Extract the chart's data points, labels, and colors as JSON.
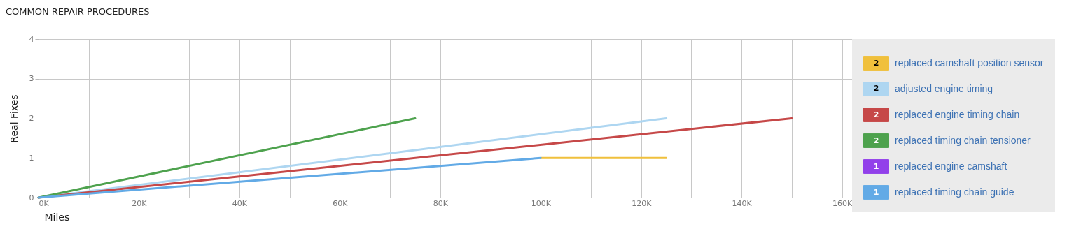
{
  "chart_data": {
    "type": "line",
    "title": "COMMON REPAIR PROCEDURES",
    "xlabel": "Miles",
    "ylabel": "Real Fixes",
    "series": [
      {
        "name": "replaced camshaft position sensor",
        "color": "#f0c03c",
        "x": [
          100000,
          125000
        ],
        "values": [
          1,
          1
        ]
      },
      {
        "name": "adjusted engine timing",
        "color": "#aed6f1",
        "x": [
          0,
          125000
        ],
        "values": [
          0,
          2
        ]
      },
      {
        "name": "replaced engine timing chain",
        "color": "#c64848",
        "x": [
          0,
          150000
        ],
        "values": [
          0,
          2
        ]
      },
      {
        "name": "replaced timing chain tensioner",
        "color": "#4ea24e",
        "x": [
          0,
          75000
        ],
        "values": [
          0,
          2
        ]
      },
      {
        "name": "replaced engine camshaft",
        "color": "#9240ea"
      },
      {
        "name": "replaced timing chain guide",
        "color": "#62aae6",
        "x": [
          0,
          100000
        ],
        "values": [
          0,
          1
        ]
      }
    ],
    "annotations": [
      "2",
      "2",
      "2",
      "2",
      "1",
      "1"
    ],
    "xlim": [
      0,
      162000
    ],
    "xticks": [
      {
        "value": 0,
        "label": "0K"
      },
      {
        "value": 10000,
        "label": null
      },
      {
        "value": 20000,
        "label": "20K"
      },
      {
        "value": 30000,
        "label": null
      },
      {
        "value": 40000,
        "label": "40K"
      },
      {
        "value": 50000,
        "label": null
      },
      {
        "value": 60000,
        "label": "60K"
      },
      {
        "value": 70000,
        "label": null
      },
      {
        "value": 80000,
        "label": "80K"
      },
      {
        "value": 90000,
        "label": null
      },
      {
        "value": 100000,
        "label": "100K"
      },
      {
        "value": 110000,
        "label": null
      },
      {
        "value": 120000,
        "label": "120K"
      },
      {
        "value": 130000,
        "label": null
      },
      {
        "value": 140000,
        "label": "140K"
      },
      {
        "value": 150000,
        "label": null
      },
      {
        "value": 160000,
        "label": "160K"
      }
    ],
    "ylim": [
      0,
      4
    ],
    "yticks": [
      0,
      1,
      2,
      3,
      4
    ],
    "grid": true,
    "legend": "right",
    "line_style": "solid",
    "marker": "none"
  }
}
